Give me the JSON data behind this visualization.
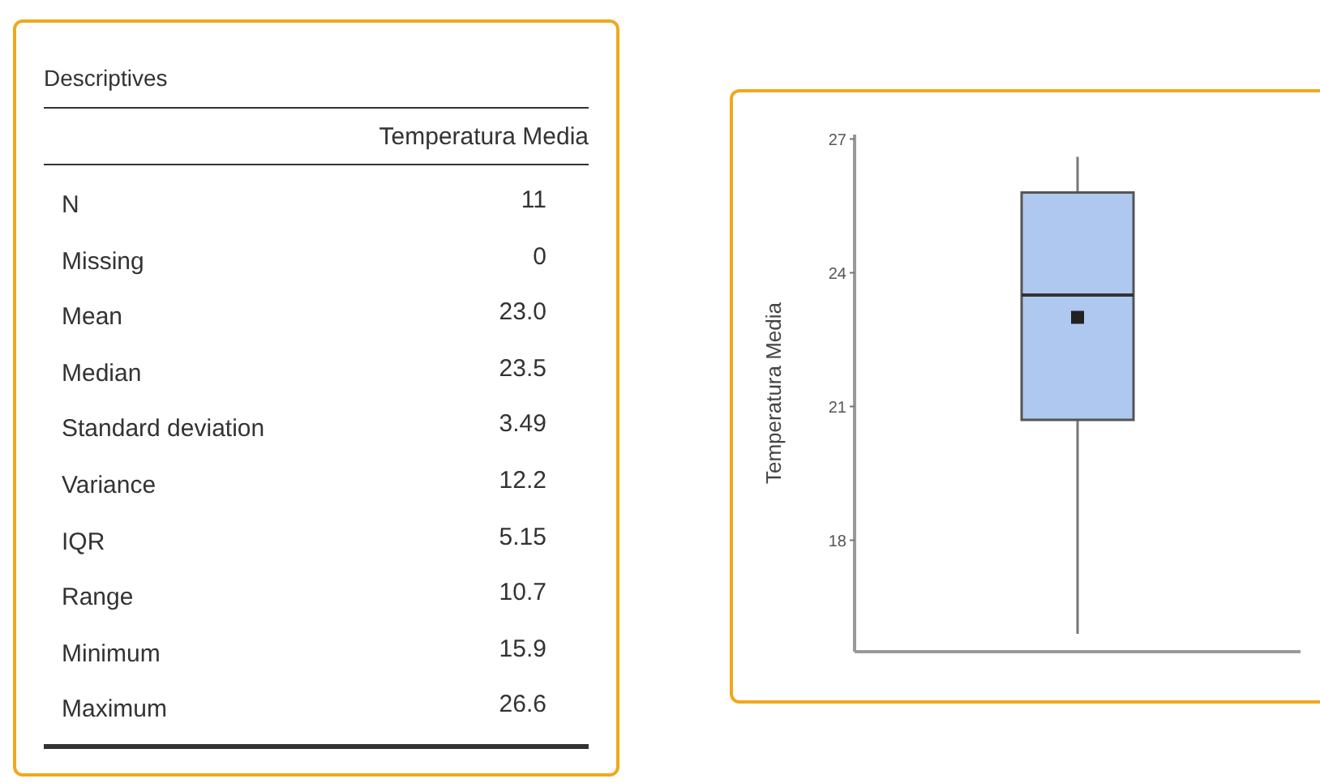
{
  "chart_data": [
    {
      "type": "other",
      "title": "Descriptives",
      "categories": [
        "N",
        "Missing",
        "Mean",
        "Median",
        "Standard deviation",
        "Variance",
        "IQR",
        "Range",
        "Minimum",
        "Maximum"
      ],
      "series": [
        {
          "name": "Temperatura Media",
          "values": [
            11,
            0,
            23.0,
            23.5,
            3.49,
            12.2,
            5.15,
            10.7,
            15.9,
            26.6
          ],
          "value_labels": [
            "11",
            "0",
            "23.0",
            "23.5",
            "3.49",
            "12.2",
            "5.15",
            "10.7",
            "15.9",
            "26.6"
          ]
        }
      ]
    },
    {
      "type": "box",
      "ylabel": "Temperatura Media",
      "categories": [
        null
      ],
      "color": "#aec8ef",
      "boxes": [
        {
          "low": 15.9,
          "q1": 20.7,
          "median": 23.5,
          "q3": 25.8,
          "high": 26.6,
          "mean": 23.0
        }
      ],
      "ylim": [
        15.5,
        27.1
      ],
      "yticks": [
        18,
        21,
        24,
        27
      ]
    }
  ]
}
